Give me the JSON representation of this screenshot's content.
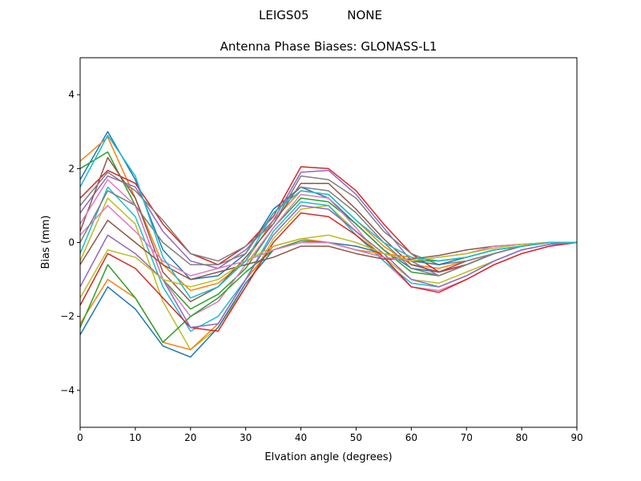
{
  "chart_data": {
    "type": "line",
    "suptitle": "LEIGS05          NONE",
    "title": "Antenna Phase Biases: GLONASS-L1",
    "x_label": "Elvation angle (degrees)",
    "y_label": "Bias (mm)",
    "x": [
      0,
      5,
      10,
      15,
      20,
      25,
      30,
      35,
      40,
      45,
      50,
      55,
      60,
      65,
      70,
      75,
      80,
      85,
      90
    ],
    "xlim": [
      0,
      90
    ],
    "xticks": [
      0,
      10,
      20,
      30,
      40,
      50,
      60,
      70,
      80,
      90
    ],
    "ylim": [
      -5,
      5
    ],
    "yticks": [
      {
        "value": -4,
        "label": "−4"
      },
      {
        "value": -2,
        "label": "−2"
      },
      0,
      2,
      4
    ],
    "grid": false,
    "series": [
      {
        "color": "#1f77b4",
        "values": [
          1.7,
          3.0,
          1.7,
          -0.2,
          -1.0,
          -0.9,
          -0.3,
          0.9,
          1.5,
          1.2,
          0.5,
          -0.2,
          -0.7,
          -0.8,
          -0.6,
          -0.3,
          -0.1,
          0,
          0
        ]
      },
      {
        "color": "#ff7f0e",
        "values": [
          2.2,
          2.85,
          1.2,
          -0.6,
          -1.3,
          -1.1,
          -0.5,
          0.6,
          1.4,
          1.3,
          0.6,
          -0.1,
          -0.6,
          -0.7,
          -0.5,
          -0.3,
          -0.1,
          0,
          0
        ]
      },
      {
        "color": "#2ca02c",
        "values": [
          2.0,
          2.45,
          1.0,
          -1.0,
          -1.8,
          -1.4,
          -0.7,
          0.4,
          1.2,
          1.1,
          0.5,
          -0.2,
          -0.8,
          -0.9,
          -0.6,
          -0.3,
          -0.1,
          0,
          0
        ]
      },
      {
        "color": "#d62728",
        "values": [
          1.2,
          1.95,
          1.6,
          0.5,
          -0.3,
          -0.6,
          -0.1,
          0.7,
          2.05,
          2.0,
          1.4,
          0.5,
          -0.3,
          -0.8,
          -0.6,
          -0.3,
          -0.1,
          0,
          0
        ]
      },
      {
        "color": "#9467bd",
        "values": [
          0.8,
          1.8,
          1.5,
          0.3,
          -0.5,
          -0.7,
          -0.2,
          0.6,
          1.9,
          1.95,
          1.3,
          0.4,
          -0.5,
          -0.9,
          -0.6,
          -0.3,
          -0.1,
          0,
          0
        ]
      },
      {
        "color": "#8c564b",
        "values": [
          0.3,
          2.3,
          1.2,
          -0.8,
          -1.6,
          -1.2,
          -0.4,
          0.5,
          1.6,
          1.6,
          0.9,
          0.1,
          -0.6,
          -0.8,
          -0.5,
          -0.3,
          -0.1,
          0,
          0
        ]
      },
      {
        "color": "#e377c2",
        "values": [
          0.5,
          1.7,
          1.0,
          -1.0,
          -2.0,
          -1.6,
          -0.6,
          0.4,
          1.3,
          1.2,
          0.4,
          -0.5,
          -1.2,
          -1.3,
          -1.0,
          -0.6,
          -0.3,
          -0.1,
          0
        ]
      },
      {
        "color": "#7f7f7f",
        "values": [
          1.0,
          1.9,
          1.4,
          0.6,
          -0.3,
          -0.5,
          -0.1,
          0.5,
          1.8,
          1.7,
          1.2,
          0.3,
          -0.3,
          -0.6,
          -0.5,
          -0.3,
          -0.1,
          0,
          0
        ]
      },
      {
        "color": "#bcbd22",
        "values": [
          -0.5,
          1.2,
          0.5,
          -1.6,
          -2.9,
          -2.3,
          -1.2,
          0.1,
          0.9,
          1.0,
          0.3,
          -0.4,
          -1.0,
          -1.1,
          -0.8,
          -0.5,
          -0.2,
          -0.05,
          0
        ]
      },
      {
        "color": "#17becf",
        "values": [
          -0.3,
          1.5,
          0.7,
          -1.2,
          -2.4,
          -2.0,
          -1.0,
          0.3,
          1.1,
          1.0,
          0.2,
          -0.5,
          -1.1,
          -1.2,
          -0.9,
          -0.5,
          -0.2,
          -0.05,
          0
        ]
      },
      {
        "color": "#1f77b4",
        "values": [
          -2.5,
          -1.2,
          -1.8,
          -2.8,
          -3.1,
          -2.3,
          -1.1,
          -0.2,
          0.0,
          0.0,
          -0.1,
          -0.3,
          -0.5,
          -0.6,
          -0.4,
          -0.2,
          -0.1,
          0,
          0
        ]
      },
      {
        "color": "#ff7f0e",
        "values": [
          -2.2,
          -1.0,
          -1.5,
          -2.7,
          -2.9,
          -2.2,
          -1.0,
          -0.1,
          0.1,
          0.0,
          -0.2,
          -0.3,
          -0.4,
          -0.5,
          -0.4,
          -0.2,
          -0.1,
          0,
          0
        ]
      },
      {
        "color": "#2ca02c",
        "values": [
          -2.3,
          -0.6,
          -1.5,
          -2.7,
          -2.0,
          -1.5,
          -0.8,
          -0.2,
          0.05,
          0.0,
          -0.2,
          -0.4,
          -0.5,
          -0.5,
          -0.4,
          -0.2,
          -0.1,
          0,
          0
        ]
      },
      {
        "color": "#d62728",
        "values": [
          -1.7,
          -0.3,
          -0.7,
          -1.5,
          -2.3,
          -2.4,
          -1.2,
          0.0,
          0.8,
          0.7,
          0.2,
          -0.4,
          -1.2,
          -1.35,
          -1.0,
          -0.6,
          -0.3,
          -0.1,
          0
        ]
      },
      {
        "color": "#9467bd",
        "values": [
          -1.2,
          0.2,
          -0.3,
          -1.0,
          -2.3,
          -2.2,
          -1.0,
          0.2,
          1.0,
          0.9,
          0.3,
          -0.3,
          -1.0,
          -1.2,
          -0.9,
          -0.5,
          -0.2,
          -0.05,
          0
        ]
      },
      {
        "color": "#8c564b",
        "values": [
          -0.6,
          0.6,
          0.0,
          -0.6,
          -1.0,
          -0.8,
          -0.6,
          -0.4,
          -0.1,
          -0.1,
          -0.3,
          -0.45,
          -0.45,
          -0.35,
          -0.2,
          -0.1,
          -0.05,
          0,
          0
        ]
      },
      {
        "color": "#e377c2",
        "values": [
          0.2,
          1.0,
          0.3,
          -0.5,
          -0.9,
          -0.7,
          -0.5,
          -0.2,
          0.0,
          0.0,
          -0.2,
          -0.4,
          -0.5,
          -0.4,
          -0.3,
          -0.1,
          -0.05,
          0,
          0
        ]
      },
      {
        "color": "#7f7f7f",
        "values": [
          0.0,
          1.4,
          1.0,
          0.0,
          -0.6,
          -0.6,
          -0.3,
          0.8,
          1.5,
          1.4,
          0.8,
          0.0,
          -0.7,
          -0.9,
          -0.6,
          -0.3,
          -0.1,
          0,
          0
        ]
      },
      {
        "color": "#bcbd22",
        "values": [
          -1.5,
          -0.2,
          -0.4,
          -1.0,
          -1.2,
          -1.0,
          -0.5,
          -0.1,
          0.1,
          0.2,
          0.0,
          -0.3,
          -0.5,
          -0.4,
          -0.3,
          -0.15,
          -0.05,
          0,
          0
        ]
      },
      {
        "color": "#17becf",
        "values": [
          1.5,
          2.9,
          1.8,
          -0.4,
          -1.5,
          -1.2,
          -0.5,
          0.8,
          1.4,
          1.3,
          0.6,
          0.0,
          -0.4,
          -0.5,
          -0.4,
          -0.2,
          -0.1,
          0,
          0
        ]
      }
    ]
  }
}
